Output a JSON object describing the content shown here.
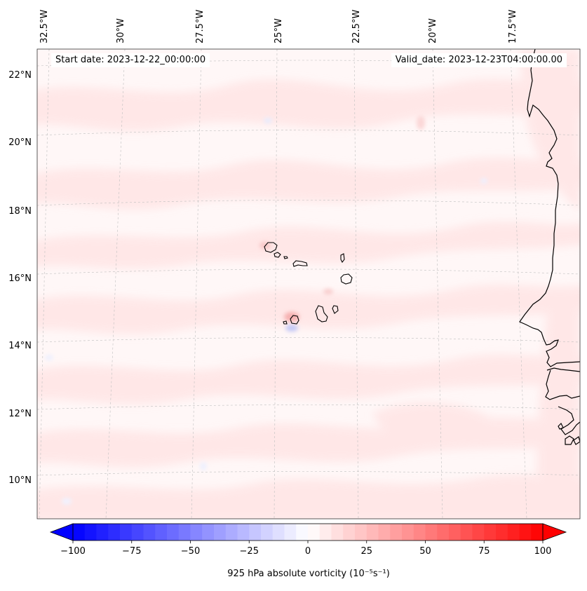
{
  "map": {
    "start_date_text": "Start date: 2023-12-22_00:00:00",
    "valid_date_text": "Valid_date: 2023-12-23T04:00:00.00",
    "lon_labels": [
      "32.5°W",
      "30°W",
      "27.5°W",
      "25°W",
      "22.5°W",
      "20°W",
      "17.5°W"
    ],
    "lat_labels": [
      "22°N",
      "20°N",
      "18°N",
      "16°N",
      "14°N",
      "12°N",
      "10°N"
    ]
  },
  "colorbar": {
    "label": "925 hPa absolute vorticity (10⁻⁵s⁻¹)",
    "min": -100,
    "max": 100,
    "ticks": [
      "−100",
      "−75",
      "−50",
      "−25",
      "0",
      "25",
      "50",
      "75",
      "100"
    ],
    "extend": "both",
    "colormap": "bwr",
    "colors": {
      "negative": "#0000ff",
      "zero": "#ffffff",
      "positive": "#ff0000"
    }
  }
}
